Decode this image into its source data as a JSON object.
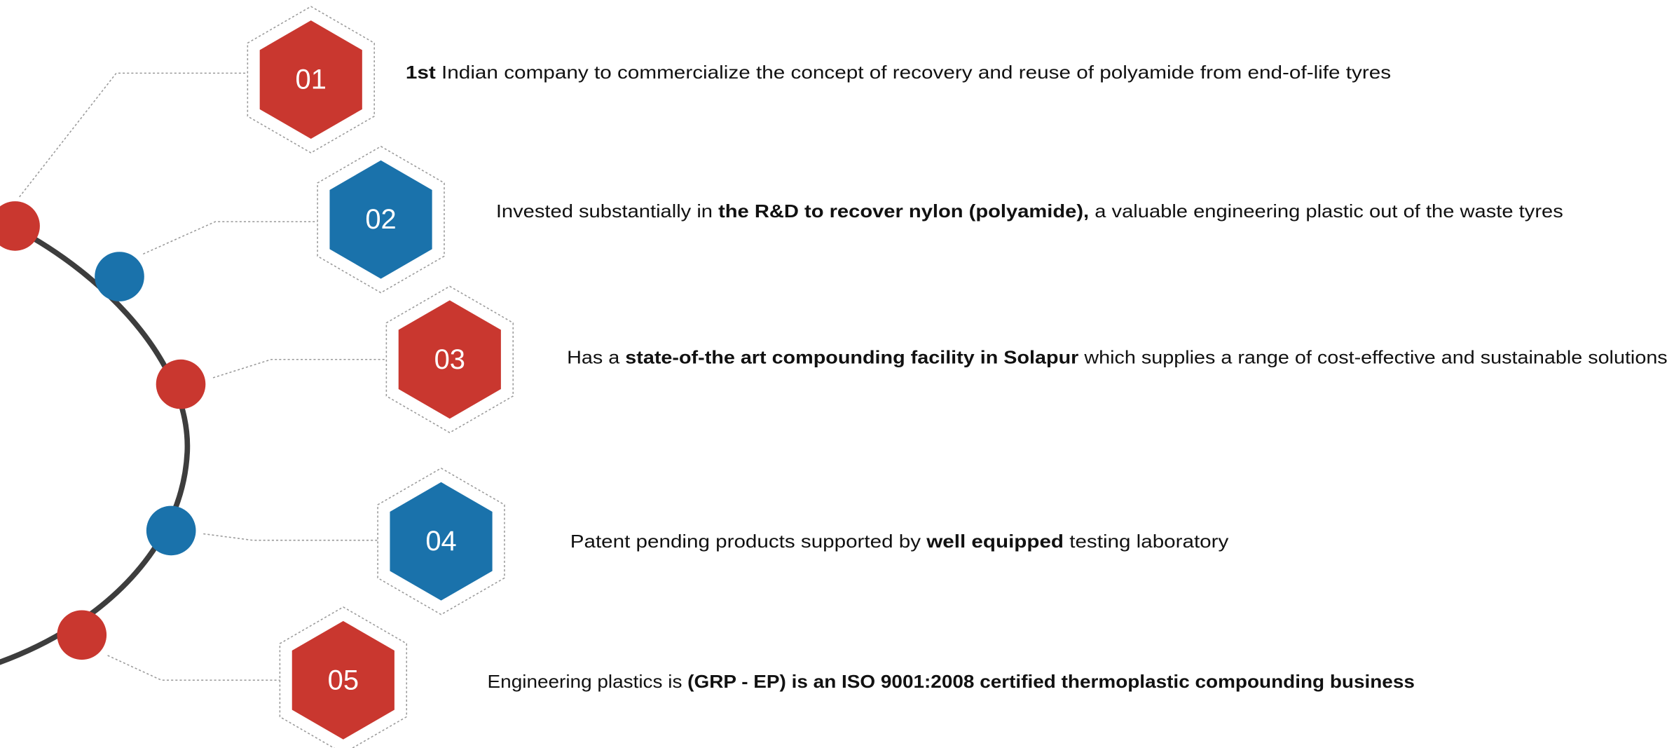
{
  "items": [
    {
      "number": "01",
      "text": [
        {
          "text": "1st",
          "bold": true
        },
        {
          "text": " Indian company to commercialize the concept of recovery and reuse of polyamide from end-of-life tyres",
          "bold": false
        }
      ]
    },
    {
      "number": "02",
      "text": [
        {
          "text": "Invested substantially in ",
          "bold": false
        },
        {
          "text": "the R&D to recover nylon (polyamide),",
          "bold": true
        },
        {
          "text": " a valuable engineering plastic out of the waste tyres",
          "bold": false
        }
      ]
    },
    {
      "number": "03",
      "text": [
        {
          "text": "Has a ",
          "bold": false
        },
        {
          "text": "state-of-the art compounding facility in Solapur",
          "bold": true
        },
        {
          "text": " which supplies a range of cost-effective and sustainable solutions",
          "bold": false
        }
      ]
    },
    {
      "number": "04",
      "text": [
        {
          "text": "Patent pending products supported by ",
          "bold": false
        },
        {
          "text": "well equipped",
          "bold": true
        },
        {
          "text": " testing laboratory",
          "bold": false
        }
      ]
    },
    {
      "number": "05",
      "text": [
        {
          "text": "Engineering plastics is ",
          "bold": false
        },
        {
          "text": "(GRP - EP) is an ISO 9001:2008 certified thermoplastic compounding business",
          "bold": true
        }
      ]
    }
  ]
}
